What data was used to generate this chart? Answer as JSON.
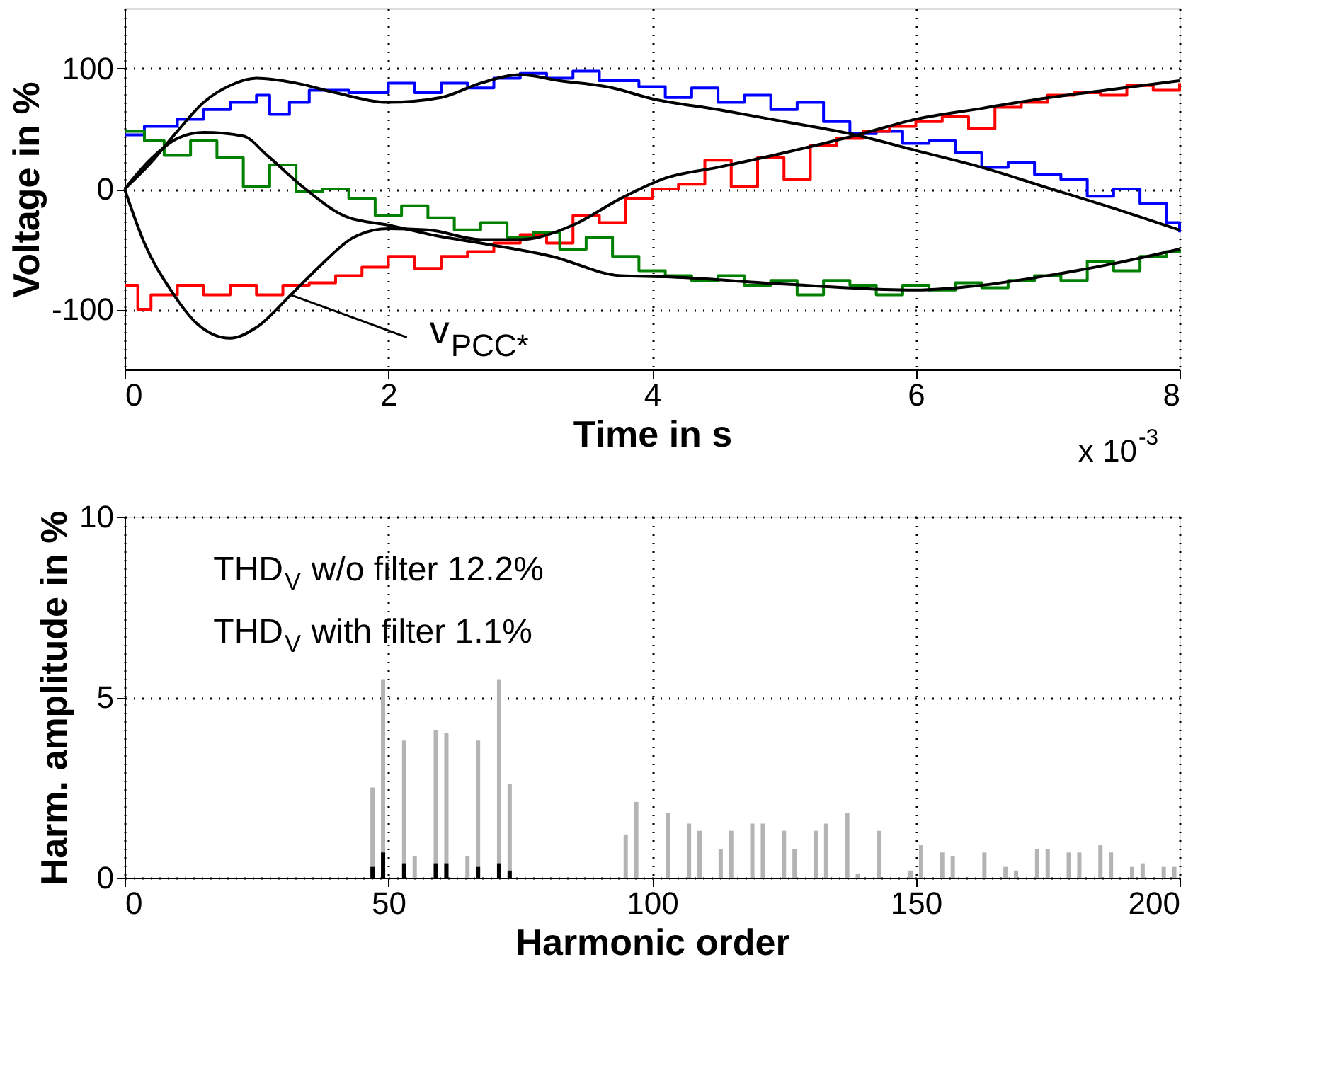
{
  "chart_data": [
    {
      "type": "line",
      "xlabel": "Time in s",
      "ylabel": "Voltage in %",
      "xlim": [
        0,
        8
      ],
      "xticks": [
        0,
        2,
        4,
        6,
        8
      ],
      "ylim": [
        -150,
        150
      ],
      "yticks": [
        -100,
        0,
        100
      ],
      "grid": true,
      "annotations": [
        {
          "text": "v$_{PCC*}$",
          "x": 1.26,
          "y": -88
        },
        "x 10$^{-3}$"
      ],
      "series": [
        {
          "type": "step",
          "color": "#0000ff",
          "x": [
            0,
            0.15,
            0.4,
            0.6,
            0.8,
            1.0,
            1.1,
            1.25,
            1.4,
            1.7,
            2.0,
            2.2,
            2.4,
            2.6,
            2.8,
            3.0,
            3.2,
            3.4,
            3.6,
            3.9,
            4.1,
            4.3,
            4.5,
            4.7,
            4.9,
            5.1,
            5.3,
            5.5,
            5.7,
            5.9,
            6.1,
            6.3,
            6.5,
            6.7,
            6.9,
            7.1,
            7.3,
            7.5,
            7.7,
            7.9,
            8.0
          ],
          "values": [
            45,
            52,
            58,
            66,
            72,
            78,
            62,
            72,
            82,
            80,
            88,
            80,
            88,
            84,
            92,
            96,
            92,
            98,
            90,
            85,
            76,
            84,
            72,
            78,
            66,
            72,
            56,
            46,
            48,
            38,
            40,
            30,
            18,
            22,
            12,
            8,
            -6,
            0,
            -12,
            -28,
            -36
          ]
        },
        {
          "type": "step",
          "color": "#ff0000",
          "x": [
            0,
            0.1,
            0.2,
            0.4,
            0.6,
            0.8,
            1.0,
            1.2,
            1.4,
            1.6,
            1.8,
            2.0,
            2.2,
            2.4,
            2.6,
            2.8,
            3.0,
            3.2,
            3.4,
            3.6,
            3.8,
            4.0,
            4.2,
            4.4,
            4.6,
            4.8,
            5.0,
            5.2,
            5.4,
            5.6,
            5.8,
            6.0,
            6.2,
            6.4,
            6.6,
            6.8,
            7.0,
            7.2,
            7.4,
            7.6,
            7.8,
            8.0
          ],
          "values": [
            -80,
            -100,
            -88,
            -80,
            -88,
            -80,
            -88,
            -80,
            -78,
            -72,
            -65,
            -56,
            -66,
            -56,
            -52,
            -45,
            -38,
            -45,
            -22,
            -28,
            -8,
            0,
            4,
            24,
            2,
            26,
            8,
            36,
            42,
            48,
            52,
            56,
            60,
            50,
            68,
            72,
            78,
            80,
            78,
            86,
            82,
            88
          ]
        },
        {
          "type": "step",
          "color": "#008000",
          "x": [
            0,
            0.15,
            0.3,
            0.5,
            0.7,
            0.9,
            1.1,
            1.3,
            1.5,
            1.7,
            1.9,
            2.1,
            2.3,
            2.5,
            2.7,
            2.9,
            3.1,
            3.3,
            3.5,
            3.7,
            3.9,
            4.1,
            4.3,
            4.5,
            4.7,
            4.9,
            5.1,
            5.3,
            5.5,
            5.7,
            5.9,
            6.1,
            6.3,
            6.5,
            6.7,
            6.9,
            7.1,
            7.3,
            7.5,
            7.7,
            7.9,
            8.0
          ],
          "values": [
            48,
            40,
            28,
            40,
            26,
            2,
            20,
            -2,
            0,
            -8,
            -22,
            -14,
            -24,
            -34,
            -28,
            -40,
            -36,
            -50,
            -40,
            -56,
            -68,
            -72,
            -76,
            -72,
            -80,
            -76,
            -88,
            -76,
            -80,
            -88,
            -80,
            -84,
            -78,
            -82,
            -76,
            -72,
            -76,
            -60,
            -68,
            -56,
            -52,
            -50
          ]
        },
        {
          "type": "line",
          "color": "#000000",
          "x": [
            0,
            0.2,
            0.4,
            0.6,
            0.8,
            1.0,
            1.3,
            1.6,
            2.0,
            2.4,
            2.7,
            3.0,
            3.3,
            3.7,
            4.0,
            4.5,
            5.0,
            5.5,
            6.0,
            6.5,
            7.0,
            7.5,
            8.0
          ],
          "values": [
            0,
            22,
            48,
            72,
            86,
            92,
            88,
            80,
            72,
            76,
            88,
            95,
            90,
            84,
            75,
            66,
            56,
            46,
            32,
            18,
            1,
            -16,
            -34
          ]
        },
        {
          "type": "line",
          "color": "#000000",
          "x": [
            0,
            0.2,
            0.4,
            0.6,
            0.9,
            1.08,
            1.36,
            1.68,
            2.0,
            2.37,
            2.7,
            3.24,
            3.76,
            4.1,
            5.0,
            6.0,
            6.5,
            7.0,
            7.5,
            8.0
          ],
          "values": [
            0,
            25,
            42,
            47,
            44,
            28,
            1,
            -23,
            -30,
            -39,
            -45,
            -56,
            -72,
            -73,
            -79,
            -84,
            -80,
            -72,
            -62,
            -50
          ]
        },
        {
          "type": "line",
          "color": "#000000",
          "x": [
            0,
            0.15,
            0.35,
            0.55,
            0.8,
            1.0,
            1.26,
            1.5,
            1.74,
            2.0,
            2.3,
            2.7,
            3.0,
            3.4,
            3.76,
            4.1,
            4.5,
            5.04,
            5.56,
            6.0,
            6.5,
            6.95,
            7.5,
            8.0
          ],
          "values": [
            0,
            -45,
            -84,
            -112,
            -124,
            -115,
            -88,
            -62,
            -40,
            -33,
            -34,
            -42,
            -42,
            -30,
            -8,
            9,
            18,
            31,
            45,
            58,
            67,
            75,
            83,
            90
          ]
        }
      ]
    },
    {
      "type": "bar",
      "xlabel": "Harmonic order",
      "ylabel": "Harm. amplitude in %",
      "xlim": [
        0,
        200
      ],
      "xticks": [
        0,
        50,
        100,
        150,
        200
      ],
      "ylim": [
        0,
        10
      ],
      "yticks": [
        0,
        5,
        10
      ],
      "grid": true,
      "annotations": [
        "THD$_{V}$ w/o filter 12.2%",
        "THD$_{V}$ with filter 1.1%"
      ],
      "series": [
        {
          "color": "#b4b4b4",
          "x": [
            47,
            49,
            53,
            55,
            59,
            61,
            65,
            67,
            71,
            73,
            95,
            97,
            103,
            107,
            109,
            113,
            115,
            119,
            121,
            125,
            127,
            131,
            133,
            137,
            139,
            143,
            149,
            151,
            155,
            157,
            163,
            167,
            169,
            173,
            175,
            179,
            181,
            185,
            187,
            191,
            193,
            197,
            199
          ],
          "values": [
            2.5,
            5.5,
            3.8,
            0.6,
            4.1,
            4.0,
            0.6,
            3.8,
            5.5,
            2.6,
            1.2,
            2.1,
            1.8,
            1.5,
            1.3,
            0.8,
            1.3,
            1.5,
            1.5,
            1.3,
            0.8,
            1.3,
            1.5,
            1.8,
            0.1,
            1.3,
            0.2,
            0.9,
            0.7,
            0.6,
            0.7,
            0.3,
            0.2,
            0.8,
            0.8,
            0.7,
            0.7,
            0.9,
            0.7,
            0.3,
            0.4,
            0.3,
            0.3
          ]
        },
        {
          "color": "#000000",
          "x": [
            47,
            49,
            53,
            59,
            61,
            67,
            71,
            73
          ],
          "values": [
            0.3,
            0.7,
            0.4,
            0.4,
            0.4,
            0.3,
            0.4,
            0.2
          ]
        }
      ]
    }
  ]
}
